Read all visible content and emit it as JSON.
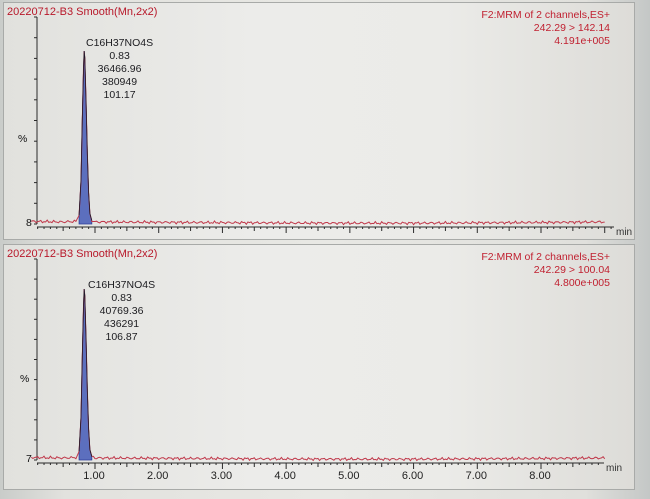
{
  "window": {
    "panels": [
      {
        "id": "top",
        "title": "20220712-B3 Smooth(Mn,2x2)",
        "info": [
          "F2:MRM of 2 channels,ES+",
          "242.29 > 142.14",
          "4.191e+005"
        ],
        "peak": {
          "label": "C16H37NO4S",
          "retention_time": "0.83",
          "area": "36466.96",
          "height": "380949",
          "sn": "101.17"
        },
        "y_unit": "%",
        "y_min_label": "8",
        "x_unit": "min"
      },
      {
        "id": "bottom",
        "title": "20220712-B3 Smooth(Mn,2x2)",
        "info": [
          "F2:MRM of 2 channels,ES+",
          "242.29 > 100.04",
          "4.800e+005"
        ],
        "peak": {
          "label": "C16H37NO4S",
          "retention_time": "0.83",
          "area": "40769.36",
          "height": "436291",
          "sn": "106.87"
        },
        "y_unit": "%",
        "y_min_label": "7",
        "x_unit": "min"
      }
    ]
  },
  "chart_data": [
    {
      "type": "line",
      "title": "20220712-B3 Smooth(Mn,2x2)",
      "channel": "242.29 > 142.14",
      "max_intensity": "4.191e+005",
      "xlabel": "min",
      "ylabel": "%",
      "xlim": [
        0.0,
        9.2
      ],
      "ylim": [
        0,
        100
      ],
      "x": [
        0.0,
        0.5,
        0.7,
        0.75,
        0.78,
        0.8,
        0.82,
        0.83,
        0.84,
        0.86,
        0.88,
        0.9,
        0.92,
        0.95,
        1.0,
        2.0,
        3.0,
        4.0,
        5.0,
        6.0,
        7.0,
        8.0,
        9.0
      ],
      "y": [
        1.5,
        1.2,
        1.5,
        5,
        25,
        60,
        90,
        100,
        96,
        70,
        40,
        18,
        6,
        2,
        1.2,
        1.0,
        0.8,
        0.6,
        0.5,
        0.5,
        0.7,
        0.9,
        1.2
      ]
    },
    {
      "type": "line",
      "title": "20220712-B3 Smooth(Mn,2x2)",
      "channel": "242.29 > 100.04",
      "max_intensity": "4.800e+005",
      "xlabel": "min",
      "ylabel": "%",
      "xlim": [
        0.0,
        9.2
      ],
      "ylim": [
        0,
        100
      ],
      "x": [
        0.0,
        0.5,
        0.7,
        0.75,
        0.78,
        0.8,
        0.82,
        0.83,
        0.84,
        0.86,
        0.88,
        0.9,
        0.92,
        0.95,
        1.0,
        2.0,
        3.0,
        4.0,
        5.0,
        6.0,
        7.0,
        8.0,
        9.0
      ],
      "y": [
        1.5,
        1.2,
        1.5,
        5,
        25,
        60,
        90,
        100,
        96,
        70,
        40,
        18,
        6,
        2,
        1.2,
        1.0,
        0.8,
        0.6,
        0.5,
        0.5,
        0.7,
        0.9,
        1.2
      ]
    }
  ],
  "x_axis": {
    "ticks": [
      1.0,
      2.0,
      3.0,
      4.0,
      5.0,
      6.0,
      7.0,
      8.0
    ],
    "tick_labels": [
      "1.00",
      "2.00",
      "3.00",
      "4.00",
      "5.00",
      "6.00",
      "7.00",
      "8.00"
    ]
  },
  "colors": {
    "trace": "#c0384a",
    "peak_fill": "#5c6fbe",
    "axis": "#2a2a2a",
    "title_text": "#b8182a"
  }
}
